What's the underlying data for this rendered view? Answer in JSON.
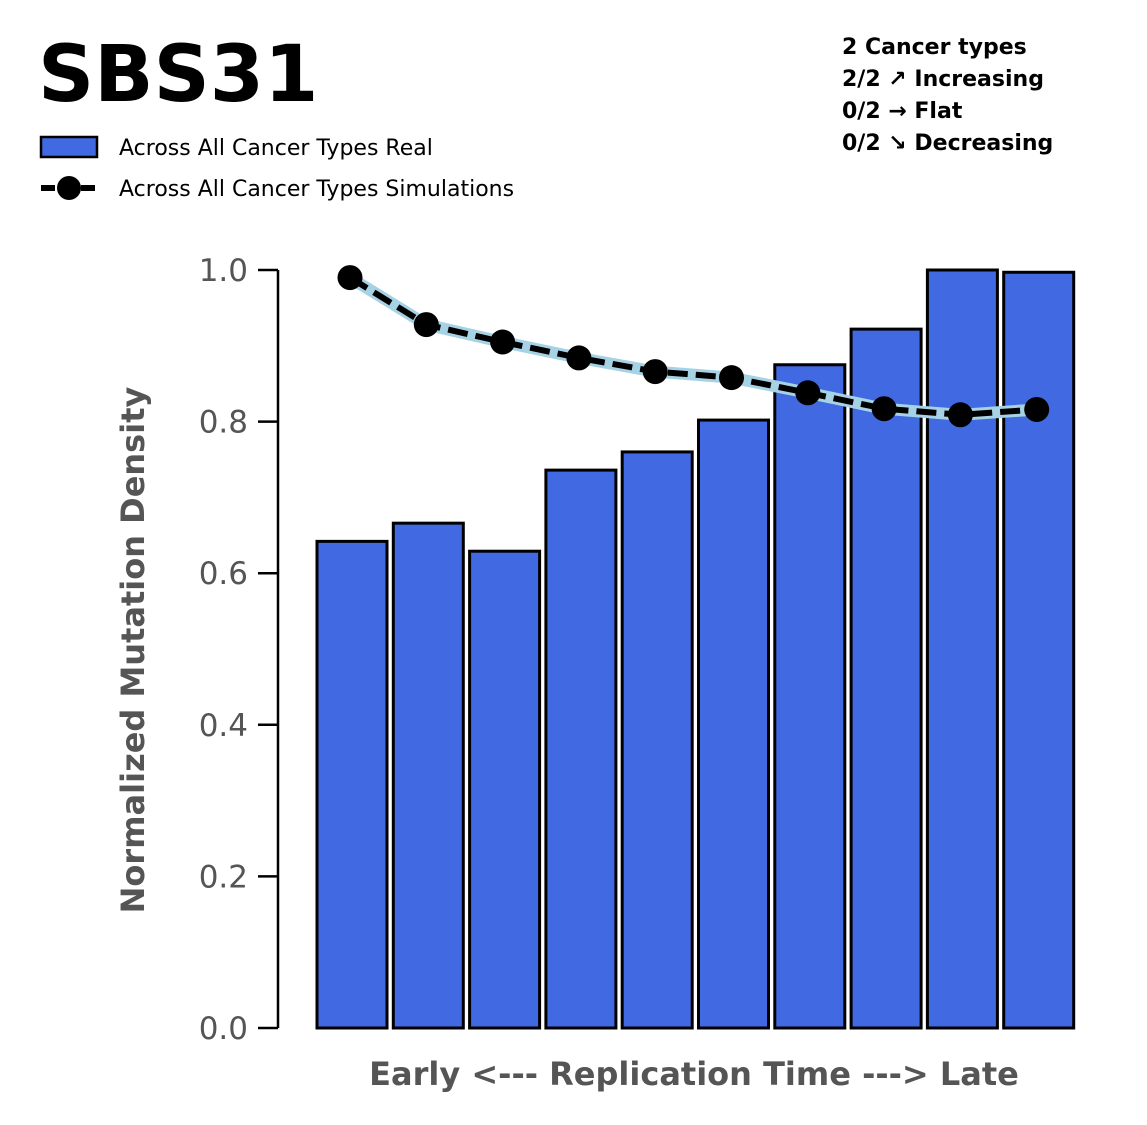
{
  "chart_data": {
    "type": "bar",
    "title": "SBS31",
    "xlabel": "Early <--- Replication Time ---> Late",
    "ylabel": "Normalized Mutation Density",
    "ylim": [
      0,
      1.0
    ],
    "y_ticks": [
      "0.0",
      "0.2",
      "0.4",
      "0.6",
      "0.8",
      "1.0"
    ],
    "grid": false,
    "legend_position": "top-left",
    "legend": [
      {
        "label": "Across All Cancer Types Real",
        "kind": "bar"
      },
      {
        "label": "Across All Cancer Types Simulations",
        "kind": "line"
      }
    ],
    "summary_lines": [
      "2 Cancer types",
      "2/2 ↗ Increasing",
      "0/2 → Flat",
      "0/2 ↘ Decreasing"
    ],
    "series": [
      {
        "name": "Across All Cancer Types Real",
        "type": "bar",
        "values": [
          0.642,
          0.666,
          0.629,
          0.736,
          0.76,
          0.802,
          0.875,
          0.922,
          1.0,
          0.997
        ]
      },
      {
        "name": "Across All Cancer Types Simulations",
        "type": "line",
        "values": [
          0.99,
          0.928,
          0.905,
          0.884,
          0.866,
          0.858,
          0.838,
          0.817,
          0.809,
          0.816
        ]
      }
    ],
    "colors": {
      "bar_fill": "#4169e1",
      "bar_edge": "#000000",
      "line": "#000000",
      "marker": "#000000",
      "band": "#a6d2e6",
      "axis": "#000000",
      "tick_label": "#555555"
    }
  }
}
